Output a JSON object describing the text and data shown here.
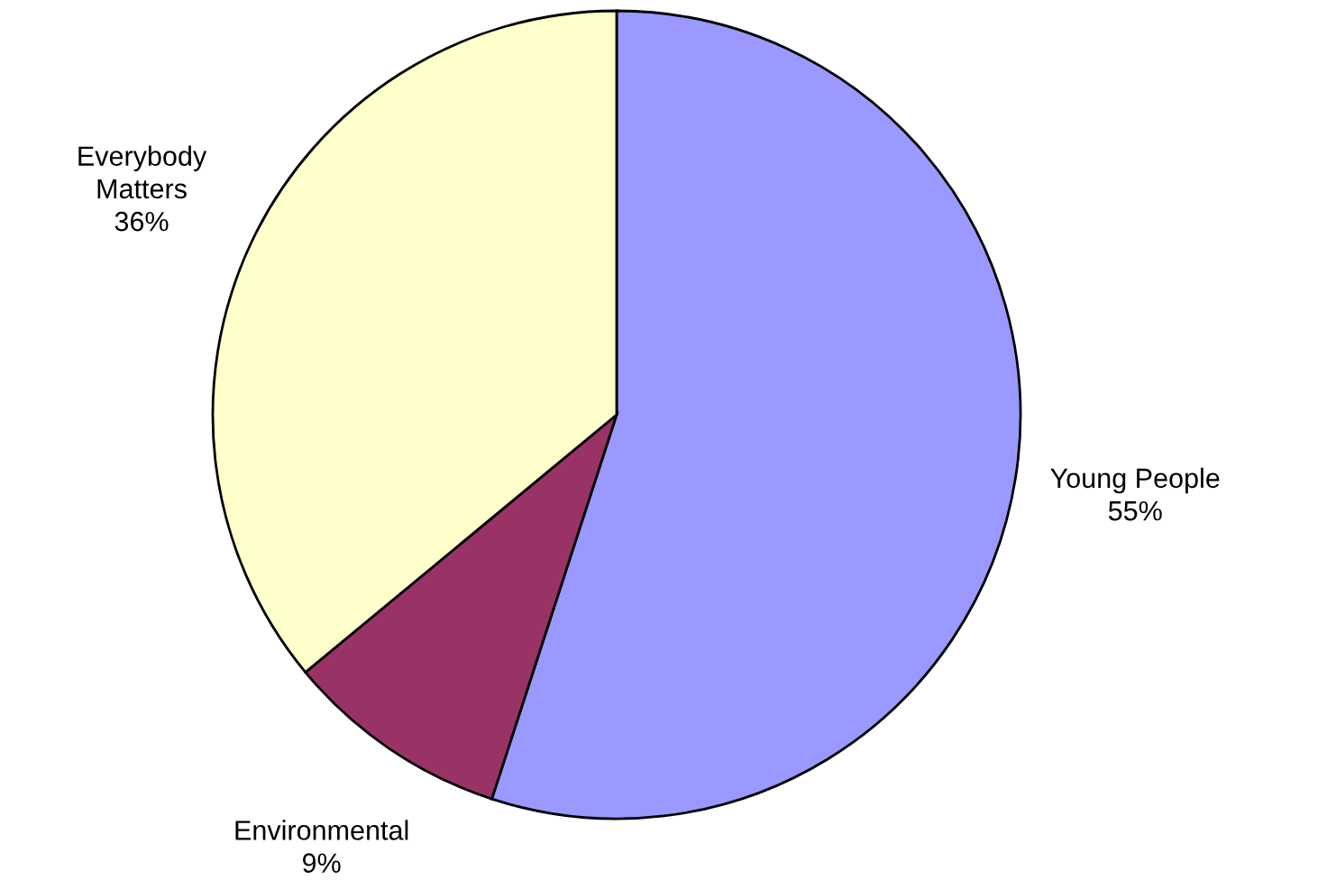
{
  "chart_data": {
    "type": "pie",
    "categories": [
      "Young People",
      "Environmental",
      "Everybody Matters"
    ],
    "values": [
      55,
      9,
      36
    ],
    "value_labels": [
      "55%",
      "9%",
      "36%"
    ],
    "colors": [
      "#9999ff",
      "#993366",
      "#ffffcc"
    ],
    "legend": false
  }
}
